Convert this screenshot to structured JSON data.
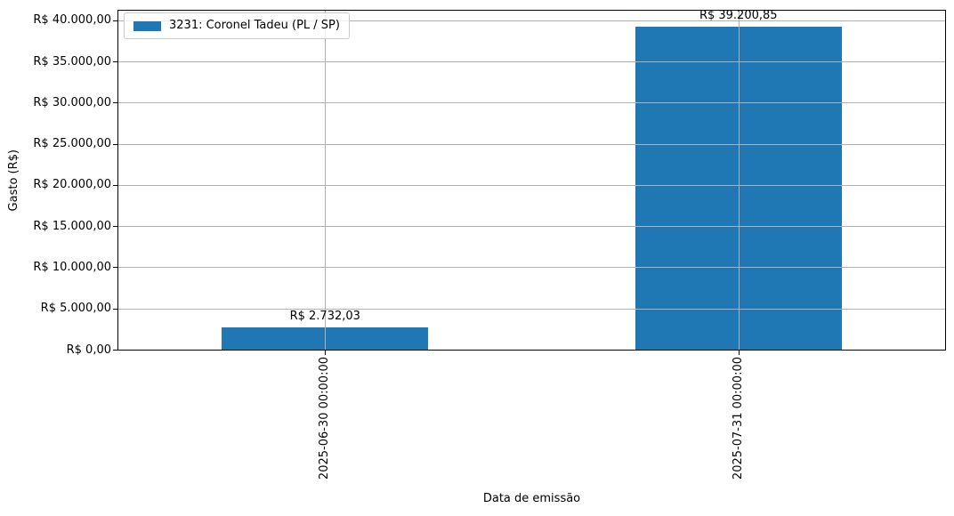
{
  "chart_data": {
    "type": "bar",
    "title": "",
    "xlabel": "Data de emissão",
    "ylabel": "Gasto (R$)",
    "categories": [
      "2025-06-30 00:00:00",
      "2025-07-31 00:00:00"
    ],
    "series": [
      {
        "name": "3231: Coronel Tadeu (PL / SP)",
        "values": [
          2732.03,
          39200.85
        ]
      }
    ],
    "value_labels": [
      "R$ 2.732,03",
      "R$ 39.200,85"
    ],
    "yticks": [
      0,
      5000,
      10000,
      15000,
      20000,
      25000,
      30000,
      35000,
      40000
    ],
    "ytick_labels": [
      "R$ 0,00",
      "R$ 5.000,00",
      "R$ 10.000,00",
      "R$ 15.000,00",
      "R$ 20.000,00",
      "R$ 25.000,00",
      "R$ 30.000,00",
      "R$ 35.000,00",
      "R$ 40.000,00"
    ],
    "ylim": [
      0,
      41161
    ],
    "grid": true,
    "grid_above_bars": true,
    "legend_position": "upper left",
    "bar_width_fraction": 0.5,
    "colors": {
      "bar": "#1f77b4",
      "grid": "#b0b0b0",
      "spine": "#000000",
      "text": "#000000",
      "legend_border": "#cccccc",
      "legend_bg": "rgba(255,255,255,0.8)"
    }
  }
}
